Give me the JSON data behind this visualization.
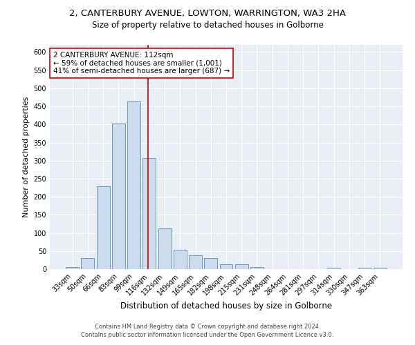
{
  "title1": "2, CANTERBURY AVENUE, LOWTON, WARRINGTON, WA3 2HA",
  "title2": "Size of property relative to detached houses in Golborne",
  "xlabel": "Distribution of detached houses by size in Golborne",
  "ylabel": "Number of detached properties",
  "categories": [
    "33sqm",
    "50sqm",
    "66sqm",
    "83sqm",
    "99sqm",
    "116sqm",
    "132sqm",
    "149sqm",
    "165sqm",
    "182sqm",
    "198sqm",
    "215sqm",
    "231sqm",
    "248sqm",
    "264sqm",
    "281sqm",
    "297sqm",
    "314sqm",
    "330sqm",
    "347sqm",
    "363sqm"
  ],
  "values": [
    5,
    31,
    228,
    403,
    463,
    307,
    112,
    54,
    39,
    30,
    14,
    13,
    5,
    0,
    0,
    0,
    0,
    4,
    0,
    4,
    4
  ],
  "bar_color": "#cddcec",
  "bar_edge_color": "#6699bb",
  "vline_x": 4.93,
  "vline_color": "#cc0000",
  "annotation_text": "2 CANTERBURY AVENUE: 112sqm\n← 59% of detached houses are smaller (1,001)\n41% of semi-detached houses are larger (687) →",
  "annotation_box_color": "white",
  "annotation_box_edge": "#cc0000",
  "footnote1": "Contains HM Land Registry data © Crown copyright and database right 2024.",
  "footnote2": "Contains public sector information licensed under the Open Government Licence v3.0.",
  "ylim": [
    0,
    620
  ],
  "yticks": [
    0,
    50,
    100,
    150,
    200,
    250,
    300,
    350,
    400,
    450,
    500,
    550,
    600
  ],
  "bg_color": "#e8eef4",
  "fig_bg_color": "#ffffff",
  "title1_fontsize": 9.5,
  "title2_fontsize": 8.5,
  "xlabel_fontsize": 8.5,
  "ylabel_fontsize": 8,
  "tick_fontsize": 7,
  "annot_fontsize": 7.5,
  "footnote_fontsize": 6
}
